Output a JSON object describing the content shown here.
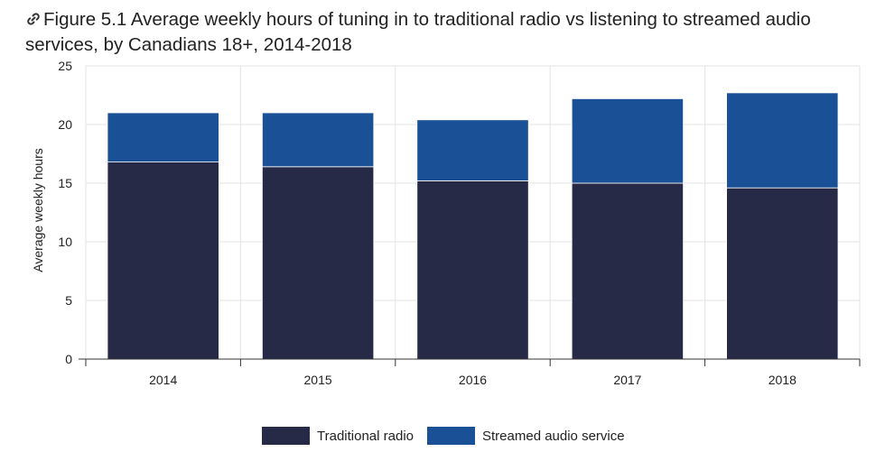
{
  "title": "Figure 5.1 Average weekly hours of tuning in to traditional radio vs listening to streamed audio services, by Canadians 18+, 2014-2018",
  "icons": {
    "title_link": "link-icon"
  },
  "chart_data": {
    "type": "bar",
    "stacked": true,
    "categories": [
      "2014",
      "2015",
      "2016",
      "2017",
      "2018"
    ],
    "series": [
      {
        "name": "Traditional radio",
        "values": [
          16.8,
          16.4,
          15.2,
          15.0,
          14.6
        ],
        "color": "#262a47"
      },
      {
        "name": "Streamed audio service",
        "values": [
          4.2,
          4.6,
          5.2,
          7.2,
          8.1
        ],
        "color": "#1a5096"
      }
    ],
    "ylabel": "Average weekly hours",
    "xlabel": "",
    "ylim": [
      0,
      25
    ],
    "yticks": [
      0,
      5,
      10,
      15,
      20,
      25
    ],
    "grid": true,
    "legend": "bottom"
  }
}
